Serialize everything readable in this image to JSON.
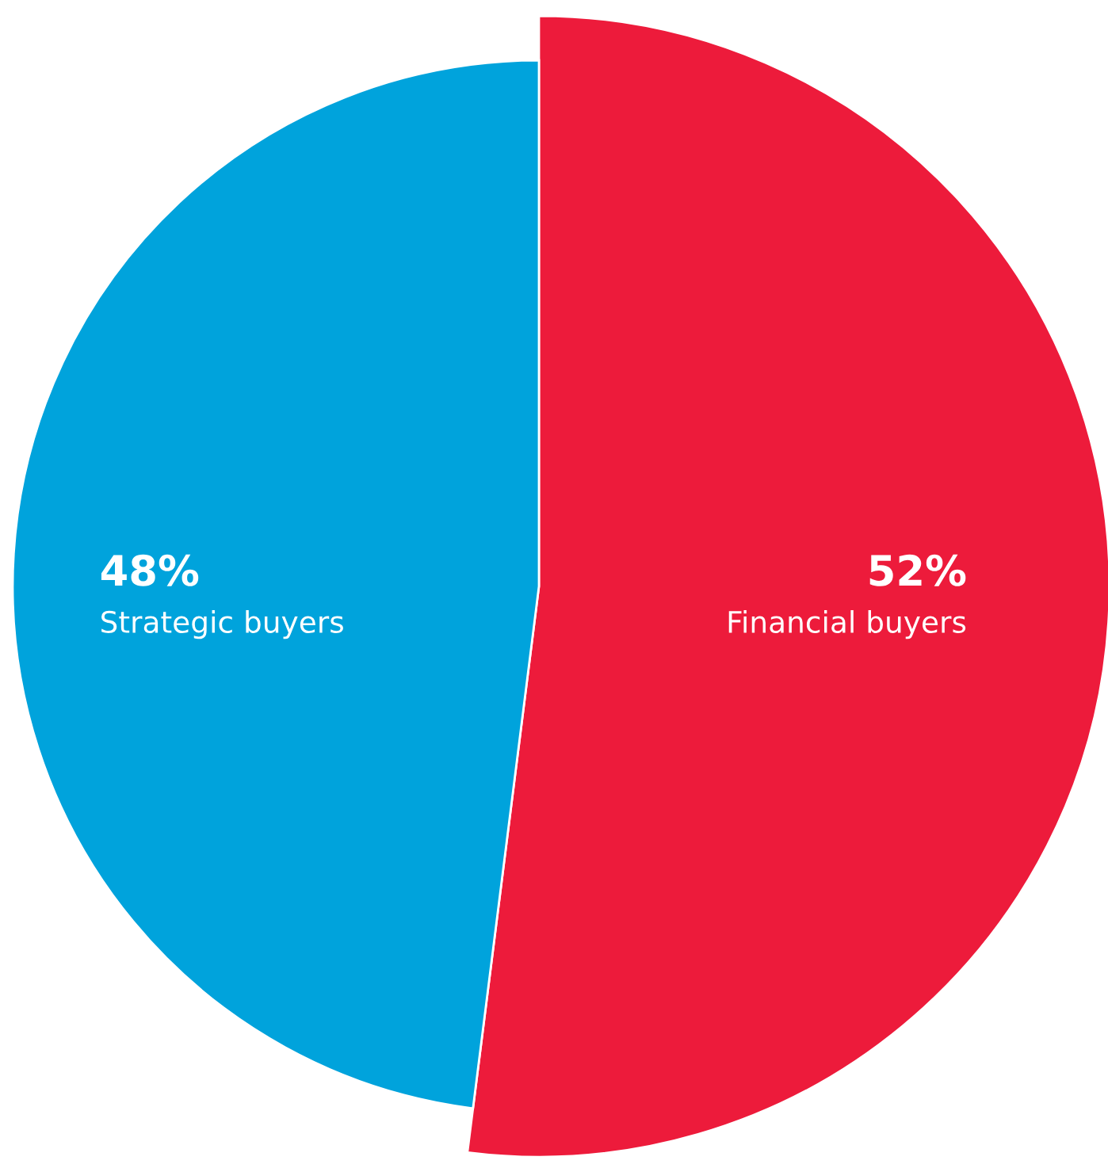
{
  "chart_data": {
    "type": "pie",
    "categories": [
      "Financial buyers",
      "Strategic buyers"
    ],
    "values": [
      52,
      48
    ],
    "colors": [
      "#ed1b3b",
      "#00a3dc"
    ],
    "value_labels": [
      "52%",
      "48%"
    ]
  }
}
